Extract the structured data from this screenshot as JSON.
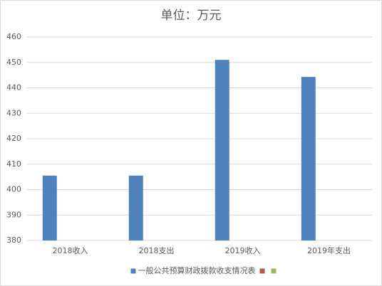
{
  "chart_data": {
    "type": "bar",
    "title": "单位：万元",
    "categories": [
      "2018收入",
      "2018支出",
      "2019收入",
      "2019年支出"
    ],
    "series": [
      {
        "name": "一般公共预算财政拨款收支情况表",
        "color": "#4f81bd",
        "values": [
          405.5,
          405.5,
          451,
          444.3
        ]
      },
      {
        "color": "#c0504d",
        "values": [
          null,
          null,
          null,
          null
        ]
      },
      {
        "color": "#9bbb59",
        "values": [
          null,
          null,
          null,
          null
        ]
      }
    ],
    "ylim": [
      380,
      460
    ],
    "yticks": [
      380,
      390,
      400,
      410,
      420,
      430,
      440,
      450,
      460
    ],
    "grid": true,
    "legend": "bottom"
  }
}
